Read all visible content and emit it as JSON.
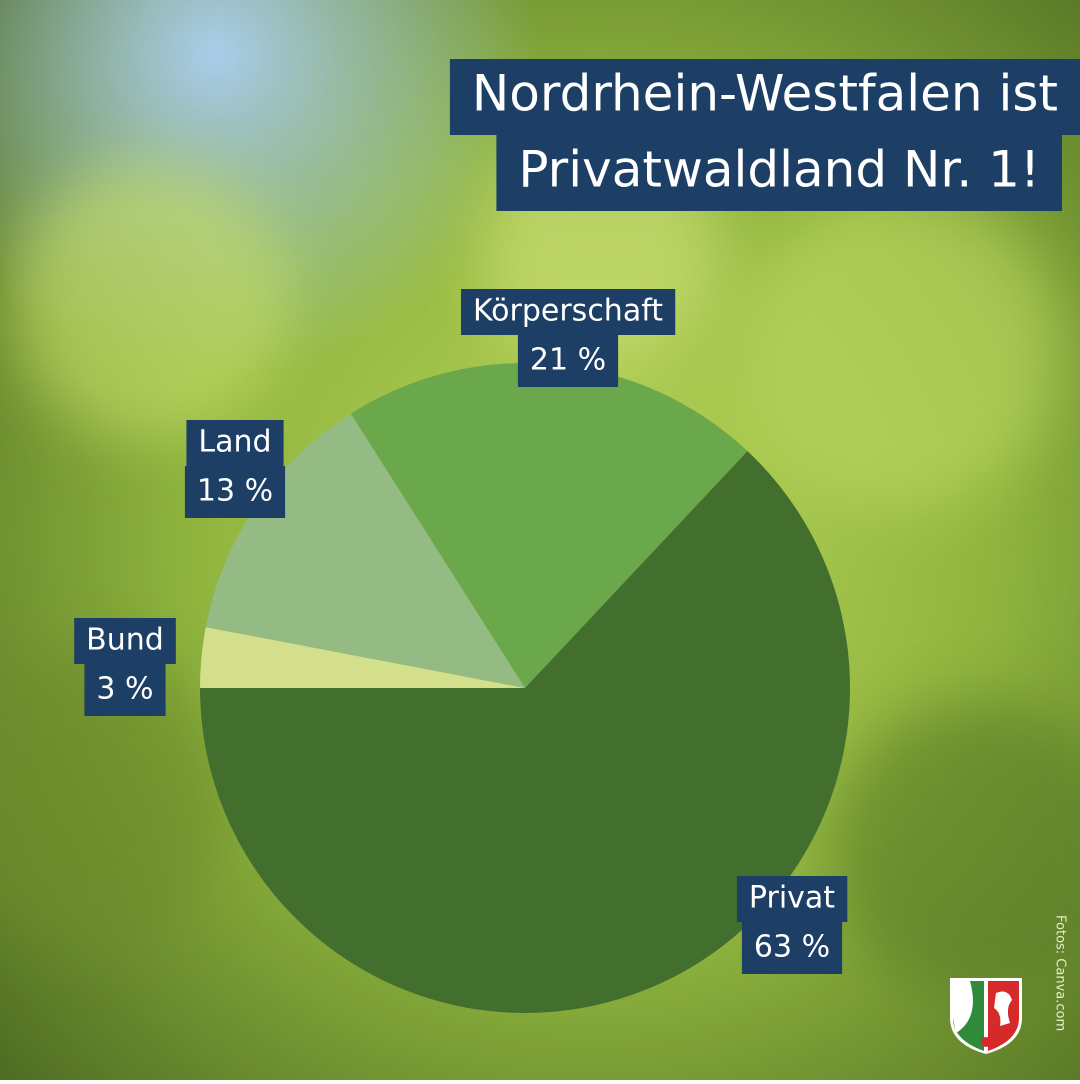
{
  "chart_data": {
    "type": "pie",
    "title_lines": [
      "Nordrhein-Westfalen ist",
      "Privatwaldland Nr. 1!"
    ],
    "categories": [
      "Bund",
      "Land",
      "Körperschaft",
      "Privat"
    ],
    "values": [
      3,
      13,
      21,
      63
    ],
    "value_labels": [
      "3 %",
      "13 %",
      "21 %",
      "63 %"
    ],
    "colors": [
      "#d4df8c",
      "#93bb83",
      "#6ba84b",
      "#436f2e"
    ]
  },
  "credit": "Fotos: Canva.com"
}
